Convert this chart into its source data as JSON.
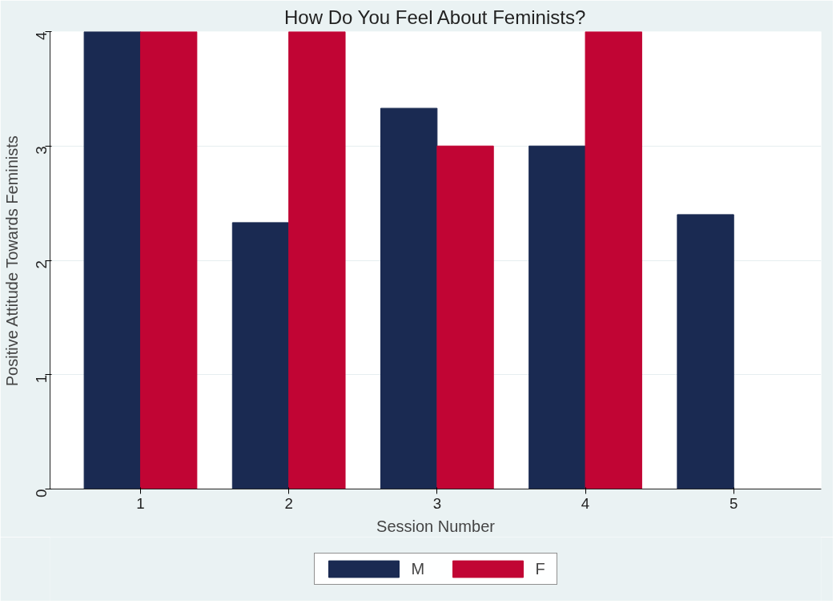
{
  "chart_data": {
    "type": "bar",
    "title": "How Do You Feel About Feminists?",
    "xlabel": "Session Number",
    "ylabel": "Positive Attitude Towards Feminists",
    "categories": [
      "1",
      "2",
      "3",
      "4",
      "5"
    ],
    "series": [
      {
        "name": "M",
        "color": "#1a2a52",
        "values": [
          4,
          2.33,
          3.33,
          3,
          2.4
        ]
      },
      {
        "name": "F",
        "color": "#c10534",
        "values": [
          4,
          4,
          3,
          4,
          null
        ]
      }
    ],
    "ylim": [
      0,
      4
    ],
    "yticks": [
      0,
      1,
      2,
      3,
      4
    ],
    "grid": "y",
    "legend": "bottom"
  }
}
